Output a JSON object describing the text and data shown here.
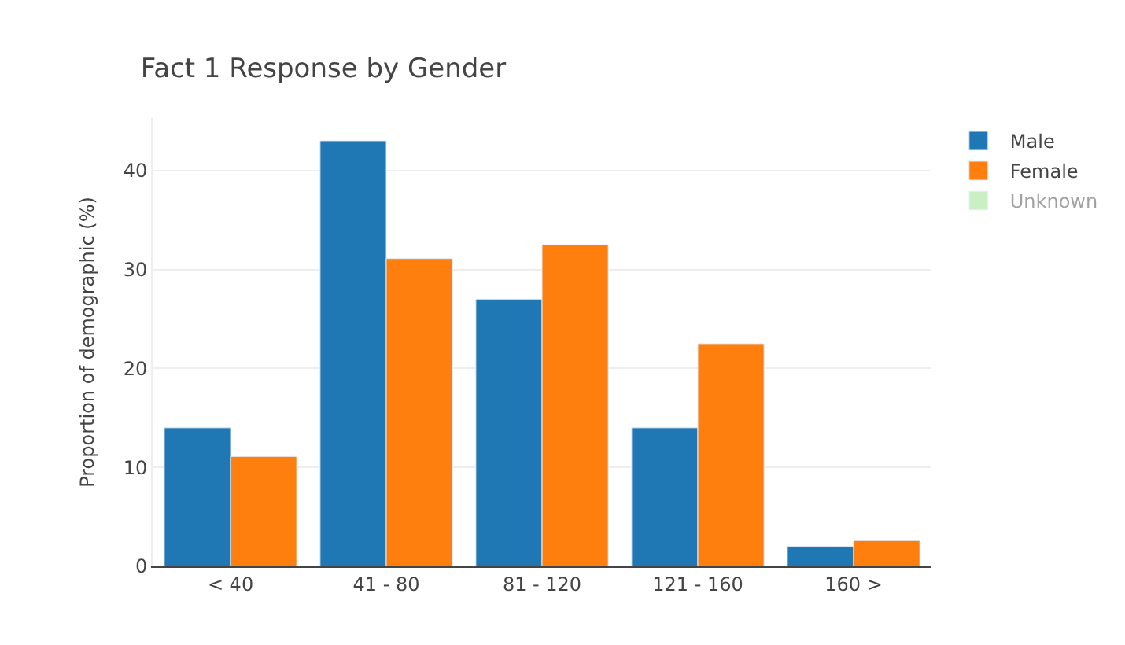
{
  "chart_data": {
    "type": "bar",
    "title": "Fact 1 Response by Gender",
    "ylabel": "Proportion of demographic (%)",
    "categories": [
      "< 40",
      "41 - 80",
      "81 - 120",
      "121 - 160",
      "160 >"
    ],
    "series": [
      {
        "name": "Male",
        "color": "#1f77b4",
        "values": [
          14,
          43,
          27,
          14,
          2
        ]
      },
      {
        "name": "Female",
        "color": "#ff7f0e",
        "values": [
          11.1,
          31.1,
          32.5,
          22.5,
          2.6
        ]
      },
      {
        "name": "Unknown",
        "color": "#98df8a",
        "values": [
          null,
          null,
          null,
          null,
          null
        ]
      }
    ],
    "ylim": [
      0,
      45.3
    ],
    "yticks": [
      0,
      10,
      20,
      30,
      40
    ],
    "grid": "y",
    "legend": "top right"
  }
}
